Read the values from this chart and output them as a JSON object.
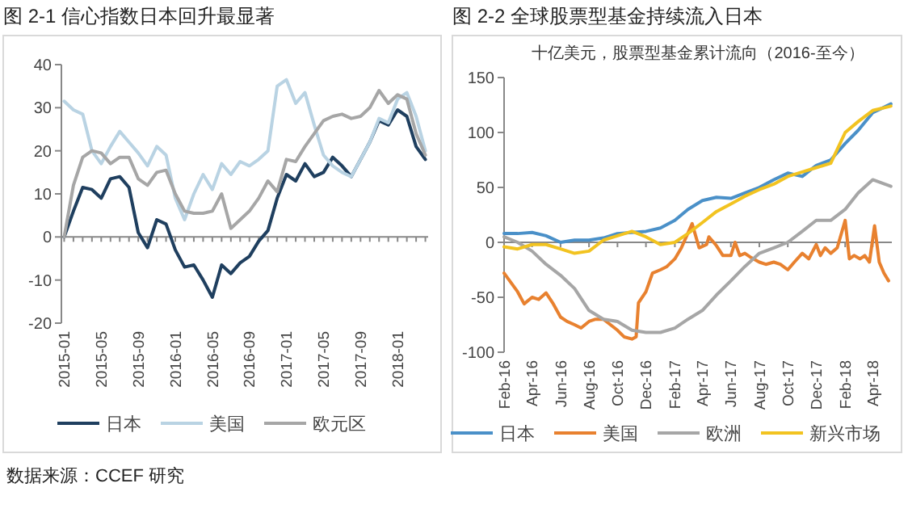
{
  "chart_data": [
    {
      "type": "line",
      "title": "图 2-1 信心指数日本回升最显著",
      "categories": [
        "2015-01",
        null,
        null,
        null,
        "2015-05",
        null,
        null,
        null,
        "2015-09",
        null,
        null,
        null,
        "2016-01",
        null,
        null,
        null,
        "2016-05",
        null,
        null,
        null,
        "2016-09",
        null,
        null,
        null,
        "2017-01",
        null,
        null,
        null,
        "2017-05",
        null,
        null,
        null,
        "2017-09",
        null,
        null,
        null,
        "2018-01",
        null,
        null,
        null
      ],
      "series": [
        {
          "name": "日本",
          "color": "#1f3f5f",
          "values": [
            0,
            6,
            11.5,
            11,
            9,
            13.5,
            14,
            11.5,
            1,
            -2.5,
            4,
            3,
            -3,
            -7,
            -6.5,
            -10,
            -14,
            -6.5,
            -8.5,
            -6,
            -4.5,
            -1,
            1.5,
            9,
            14.5,
            13,
            17,
            14,
            15,
            18.5,
            16.5,
            14,
            18,
            22,
            27,
            26,
            29.5,
            28,
            21,
            18
          ]
        },
        {
          "name": "美国",
          "color": "#b9d3e3",
          "values": [
            31.5,
            29.5,
            28.5,
            20,
            17,
            21,
            24.5,
            22,
            19.5,
            16.5,
            21,
            19,
            9,
            4,
            10,
            14.5,
            11,
            17,
            14.5,
            17.5,
            16.5,
            18,
            20,
            35,
            36.5,
            31,
            33.5,
            26,
            19,
            16.5,
            15,
            14,
            18,
            22,
            27.5,
            26.5,
            32,
            33.5,
            28,
            20
          ]
        },
        {
          "name": "欧元区",
          "color": "#a6a6a6",
          "values": [
            0,
            12,
            18.5,
            20,
            19.5,
            17,
            18.5,
            18.5,
            13.5,
            12,
            15,
            15.5,
            10,
            6,
            5.5,
            5.5,
            6,
            10,
            2,
            4,
            6,
            9,
            13,
            10.5,
            18,
            17.5,
            21,
            24,
            27,
            28,
            28.5,
            27.5,
            28,
            30,
            34,
            31,
            33,
            32,
            24,
            19
          ]
        }
      ],
      "ylim": [
        -20,
        40
      ],
      "yticks": [
        -20,
        -10,
        0,
        10,
        20,
        30,
        40
      ],
      "legend": "bottom",
      "annotations": [
        "数据来源：CCEF 研究"
      ]
    },
    {
      "type": "line",
      "title": "图 2-2 全球股票型基金持续流入日本",
      "subtitle": "十亿美元，股票型基金累计流向（2016-至今）",
      "xlim": [
        "2016-02-01",
        "2018-05-12"
      ],
      "xticks": [
        {
          "value": "2016-02-01",
          "label": "Feb-16"
        },
        {
          "value": "2016-04-01",
          "label": "Apr-16"
        },
        {
          "value": "2016-06-01",
          "label": "Jun-16"
        },
        {
          "value": "2016-08-01",
          "label": "Aug-16"
        },
        {
          "value": "2016-10-01",
          "label": "Oct-16"
        },
        {
          "value": "2016-12-01",
          "label": "Dec-16"
        },
        {
          "value": "2017-02-01",
          "label": "Feb-17"
        },
        {
          "value": "2017-04-01",
          "label": "Apr-17"
        },
        {
          "value": "2017-06-01",
          "label": "Jun-17"
        },
        {
          "value": "2017-08-01",
          "label": "Aug-17"
        },
        {
          "value": "2017-10-01",
          "label": "Oct-17"
        },
        {
          "value": "2017-12-01",
          "label": "Dec-17"
        },
        {
          "value": "2018-02-01",
          "label": "Feb-18"
        },
        {
          "value": "2018-04-01",
          "label": "Apr-18"
        }
      ],
      "x": [
        "2016-02-01",
        "2016-03-01",
        "2016-04-01",
        "2016-05-01",
        "2016-06-01",
        "2016-07-01",
        "2016-08-01",
        "2016-09-01",
        "2016-10-01",
        "2016-11-01",
        "2016-12-01",
        "2017-01-01",
        "2017-02-01",
        "2017-03-01",
        "2017-04-01",
        "2017-05-01",
        "2017-06-01",
        "2017-07-01",
        "2017-08-01",
        "2017-09-01",
        "2017-10-01",
        "2017-11-01",
        "2017-12-01",
        "2018-01-01",
        "2018-02-01",
        "2018-03-01",
        "2018-04-01",
        "2018-05-10"
      ],
      "series": [
        {
          "name": "日本",
          "color": "#4a90c8",
          "values": [
            8,
            8,
            9,
            6,
            0,
            2,
            2,
            4,
            8,
            9,
            10,
            13,
            20,
            30,
            38,
            41,
            40,
            45,
            50,
            57,
            63,
            60,
            70,
            75,
            90,
            102,
            118,
            126
          ]
        },
        {
          "name": "美国",
          "color": "#e8812f",
          "x": [
            "2016-02-01",
            "2016-03-01",
            "2016-03-15",
            "2016-04-01",
            "2016-04-15",
            "2016-05-01",
            "2016-05-15",
            "2016-06-01",
            "2016-06-15",
            "2016-07-01",
            "2016-07-15",
            "2016-08-01",
            "2016-08-15",
            "2016-09-01",
            "2016-10-01",
            "2016-10-15",
            "2016-11-01",
            "2016-11-10",
            "2016-11-15",
            "2016-12-01",
            "2016-12-15",
            "2017-01-01",
            "2017-01-15",
            "2017-02-01",
            "2017-02-15",
            "2017-03-10",
            "2017-03-25",
            "2017-04-10",
            "2017-04-15",
            "2017-05-01",
            "2017-05-15",
            "2017-06-01",
            "2017-06-10",
            "2017-06-20",
            "2017-07-01",
            "2017-07-15",
            "2017-08-01",
            "2017-08-15",
            "2017-09-01",
            "2017-09-15",
            "2017-10-01",
            "2017-10-15",
            "2017-11-01",
            "2017-11-15",
            "2017-12-01",
            "2017-12-10",
            "2017-12-20",
            "2018-01-01",
            "2018-01-15",
            "2018-02-01",
            "2018-02-10",
            "2018-02-20",
            "2018-03-05",
            "2018-03-15",
            "2018-03-25",
            "2018-04-05",
            "2018-04-15",
            "2018-04-25",
            "2018-05-05"
          ],
          "values": [
            -28,
            -45,
            -56,
            -50,
            -52,
            -46,
            -55,
            -68,
            -72,
            -75,
            -78,
            -72,
            -70,
            -70,
            -80,
            -86,
            -88,
            -86,
            -55,
            -45,
            -28,
            -25,
            -22,
            -15,
            -5,
            17,
            -5,
            -2,
            5,
            -3,
            -12,
            -12,
            0,
            -12,
            -10,
            -14,
            -18,
            -20,
            -18,
            -20,
            -25,
            -18,
            -10,
            -15,
            -2,
            -12,
            -5,
            -10,
            -5,
            20,
            -15,
            -12,
            -15,
            -12,
            -18,
            15,
            -18,
            -28,
            -35
          ]
        },
        {
          "name": "欧洲",
          "color": "#a6a6a6",
          "values": [
            5,
            0,
            -8,
            -20,
            -30,
            -42,
            -62,
            -70,
            -72,
            -80,
            -82,
            -82,
            -78,
            -70,
            -62,
            -48,
            -35,
            -22,
            -10,
            -5,
            0,
            10,
            20,
            20,
            30,
            45,
            57,
            51
          ]
        },
        {
          "name": "新兴市场",
          "color": "#f2c320",
          "values": [
            -4,
            -6,
            -2,
            -2,
            -6,
            -10,
            -8,
            2,
            6,
            10,
            5,
            -2,
            0,
            8,
            18,
            28,
            35,
            42,
            48,
            53,
            60,
            64,
            68,
            72,
            100,
            110,
            120,
            124
          ]
        }
      ],
      "ylim": [
        -100,
        150
      ],
      "yticks": [
        -100,
        -50,
        0,
        50,
        100,
        150
      ],
      "legend": "bottom"
    }
  ]
}
